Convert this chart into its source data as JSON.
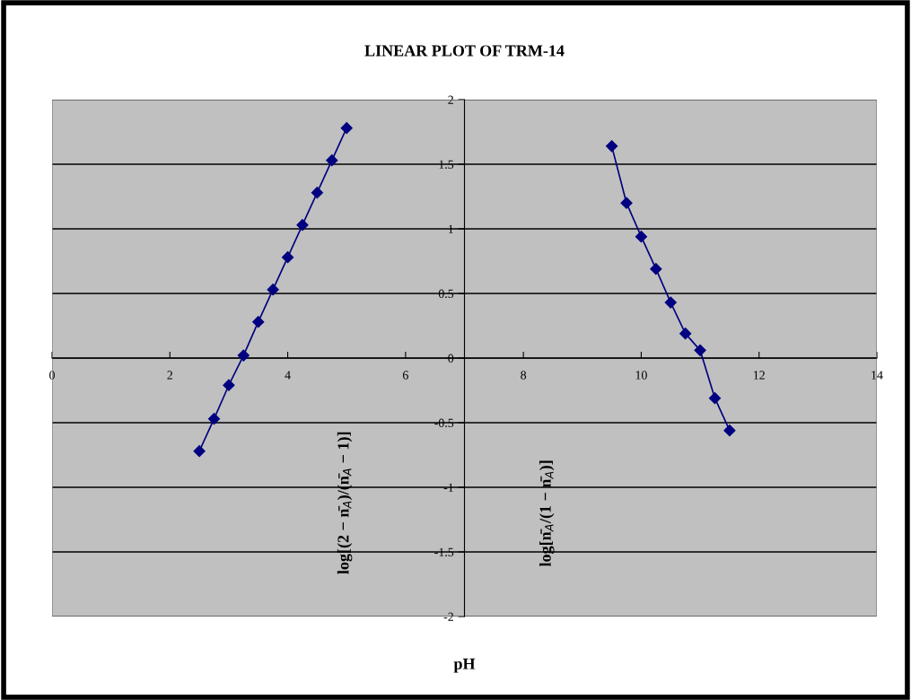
{
  "chart_data": {
    "type": "line",
    "title": "LINEAR PLOT OF TRM-14",
    "xlabel": "pH",
    "series": [
      {
        "color": "#000080",
        "x": [
          2.5,
          2.75,
          3.0,
          3.25,
          3.5,
          3.75,
          4.0,
          4.25,
          4.5,
          4.75,
          5.0
        ],
        "values": [
          -0.72,
          -0.47,
          -0.21,
          0.02,
          0.28,
          0.53,
          0.78,
          1.03,
          1.28,
          1.53,
          1.78
        ]
      },
      {
        "color": "#000080",
        "x": [
          9.5,
          9.75,
          10.0,
          10.25,
          10.5,
          10.75,
          11.0,
          11.25,
          11.5
        ],
        "values": [
          1.64,
          1.2,
          0.94,
          0.69,
          0.43,
          0.19,
          0.06,
          -0.31,
          -0.56
        ]
      }
    ],
    "xlim": [
      0,
      14
    ],
    "xticks": [
      0,
      2,
      4,
      6,
      8,
      10,
      12,
      14
    ],
    "ylim": [
      -2,
      2
    ],
    "yticks": [
      -2,
      -1.5,
      -1,
      -0.5,
      0,
      0.5,
      1,
      1.5,
      2
    ],
    "grid": "y",
    "marker": "diamond",
    "line_style": "solid",
    "annotations": [
      "log[(2 − n̄$_{A}$)/(n̄$_{A}$ − 1)]",
      "log[n̄$_{A}$/(1 − n̄$_{A}$)]"
    ]
  }
}
